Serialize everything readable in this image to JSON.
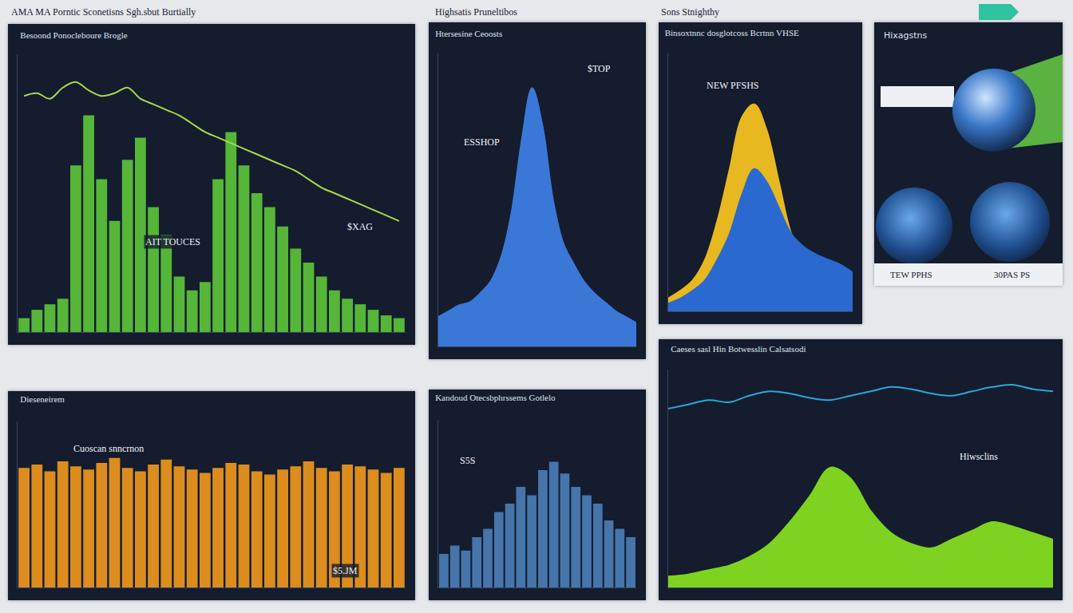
{
  "page": {
    "headers": [
      "AMA MA Porntic Sconetisns Sgh.sbut Burtially",
      "Highsatis Pruneltibos",
      "Sons Stnighthy"
    ],
    "image_panel": {
      "title": "Hixagstns",
      "labels": [
        "TEW PPHS",
        "30PAS PS"
      ]
    }
  },
  "chart_data": [
    {
      "type": "bar",
      "title": "Besoond Ponocleboure Brogle",
      "annotations": [
        "AIT TOUCES",
        "$XAG"
      ],
      "categories": [
        null,
        null,
        null,
        null,
        null,
        null,
        null,
        null,
        null,
        null,
        null,
        null,
        null,
        null,
        null,
        null,
        null,
        null,
        null,
        null,
        null,
        null,
        null,
        null,
        null,
        null,
        null,
        null,
        null,
        null
      ],
      "series": [
        {
          "type": "bar",
          "color": "#5cc83a",
          "values": [
            5,
            8,
            10,
            12,
            60,
            78,
            55,
            40,
            62,
            70,
            45,
            35,
            20,
            15,
            18,
            55,
            72,
            60,
            50,
            45,
            38,
            30,
            25,
            20,
            15,
            12,
            10,
            8,
            6,
            5
          ]
        },
        {
          "type": "line",
          "color": "#a6d94a",
          "values": [
            85,
            86,
            84,
            88,
            90,
            87,
            85,
            86,
            88,
            84,
            82,
            80,
            78,
            75,
            72,
            70,
            68,
            66,
            64,
            62,
            60,
            58,
            55,
            52,
            50,
            48,
            46,
            44,
            42,
            40
          ]
        }
      ],
      "ylim": [
        0,
        100
      ],
      "grid": false,
      "tick_labels": false
    },
    {
      "type": "area",
      "title": "Htersesine Ceoosts",
      "annotations": [
        "$TOP",
        "ESSHOP"
      ],
      "categories": [
        null,
        null,
        null,
        null,
        null,
        null,
        null,
        null,
        null,
        null,
        null,
        null,
        null,
        null,
        null,
        null,
        null,
        null,
        null,
        null
      ],
      "series": [
        {
          "color": "#3a78d8",
          "values": [
            10,
            12,
            14,
            15,
            18,
            22,
            30,
            45,
            70,
            88,
            75,
            50,
            35,
            28,
            22,
            18,
            15,
            12,
            10,
            8
          ]
        }
      ],
      "ylim": [
        0,
        100
      ],
      "grid": false,
      "tick_labels": false
    },
    {
      "type": "area",
      "title": "Binsoxtnnc dosglotcoss Bcrtnn VHSE",
      "annotations": [
        "NEW PFSHS"
      ],
      "categories": [
        null,
        null,
        null,
        null,
        null,
        null,
        null,
        null,
        null,
        null,
        null,
        null,
        null,
        null,
        null,
        null
      ],
      "series": [
        {
          "color": "#e8b820",
          "values": [
            5,
            8,
            12,
            20,
            35,
            55,
            75,
            80,
            70,
            50,
            30,
            20,
            15,
            12,
            10,
            8
          ]
        },
        {
          "color": "#2a6ad0",
          "values": [
            3,
            5,
            8,
            12,
            20,
            30,
            45,
            55,
            50,
            40,
            30,
            25,
            22,
            20,
            18,
            15
          ]
        }
      ],
      "ylim": [
        0,
        100
      ],
      "grid": false,
      "tick_labels": false
    },
    {
      "type": "bar",
      "title": "Dieseneirem",
      "annotations": [
        "Cuoscan snncrnon",
        "$5.JM"
      ],
      "categories": [
        null,
        null,
        null,
        null,
        null,
        null,
        null,
        null,
        null,
        null,
        null,
        null,
        null,
        null,
        null,
        null,
        null,
        null,
        null,
        null,
        null,
        null,
        null,
        null,
        null,
        null,
        null,
        null,
        null,
        null
      ],
      "series": [
        {
          "color": "#f29a1c",
          "values": [
            72,
            74,
            70,
            76,
            73,
            71,
            75,
            78,
            72,
            70,
            74,
            77,
            73,
            71,
            69,
            72,
            75,
            74,
            70,
            68,
            71,
            73,
            76,
            72,
            70,
            74,
            73,
            71,
            69,
            72
          ]
        }
      ],
      "ylim": [
        0,
        100
      ],
      "grid": false,
      "tick_labels": false
    },
    {
      "type": "bar",
      "title": "Kandoud Otecsbphrssems Gotlelo",
      "annotations": [
        "S5S"
      ],
      "categories": [
        null,
        null,
        null,
        null,
        null,
        null,
        null,
        null,
        null,
        null,
        null,
        null,
        null,
        null,
        null,
        null,
        null,
        null
      ],
      "series": [
        {
          "color": "#4a7fb8",
          "values": [
            20,
            25,
            22,
            30,
            35,
            45,
            50,
            60,
            55,
            70,
            75,
            68,
            60,
            55,
            50,
            40,
            35,
            30
          ]
        }
      ],
      "ylim": [
        0,
        100
      ],
      "grid": false,
      "tick_labels": false
    },
    {
      "type": "area",
      "title": "Caeses sasl Hin Botwesslin Calsatsodi",
      "annotations": [
        "Hiwsclins"
      ],
      "categories": [
        null,
        null,
        null,
        null,
        null,
        null,
        null,
        null,
        null,
        null,
        null,
        null,
        null,
        null,
        null,
        null,
        null,
        null,
        null,
        null
      ],
      "series": [
        {
          "type": "line",
          "color": "#2aa8d8",
          "values": [
            82,
            84,
            86,
            85,
            88,
            90,
            89,
            87,
            86,
            88,
            90,
            92,
            91,
            89,
            88,
            90,
            92,
            93,
            91,
            90
          ]
        },
        {
          "type": "area",
          "color": "#7ed321",
          "values": [
            5,
            6,
            8,
            10,
            14,
            20,
            30,
            42,
            55,
            50,
            35,
            25,
            20,
            18,
            22,
            26,
            30,
            28,
            25,
            22
          ]
        }
      ],
      "ylim": [
        0,
        100
      ],
      "grid": false,
      "tick_labels": false
    }
  ]
}
